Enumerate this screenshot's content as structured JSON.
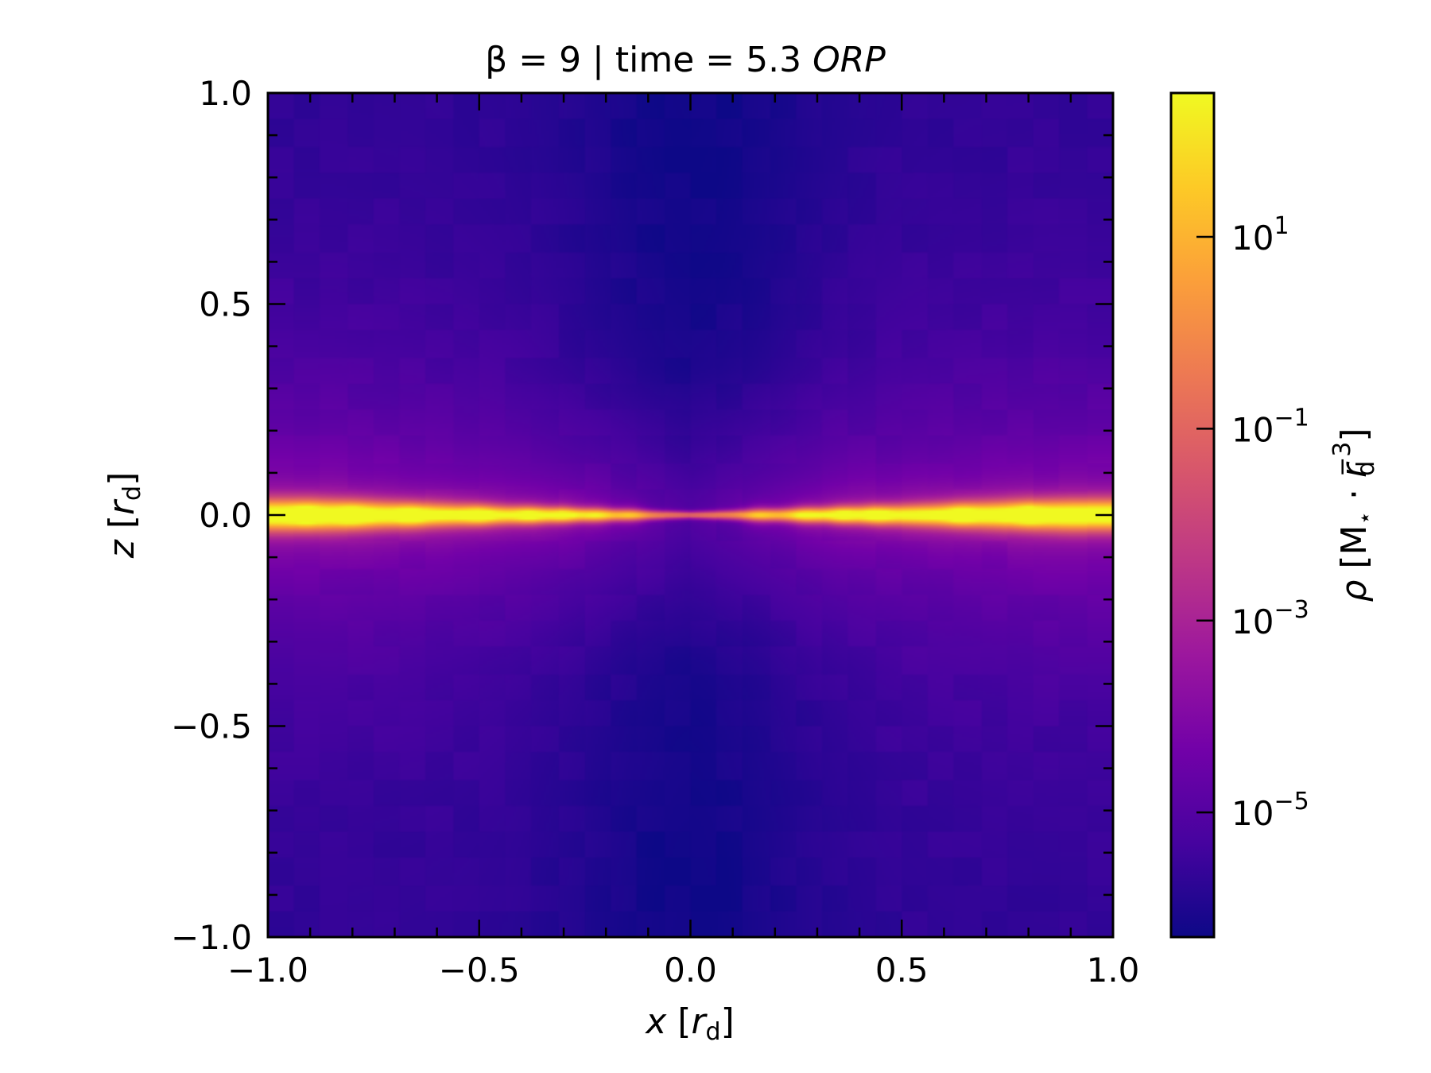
{
  "chart_data": {
    "type": "heatmap",
    "title": {
      "prefix": "β = 9 | time = 5.3 ",
      "suffix": "ORP"
    },
    "xlabel": {
      "var": "x",
      "open": " [",
      "sym": "r",
      "sub": "d",
      "close": "]"
    },
    "ylabel": {
      "var": "z",
      "open": " [",
      "sym": "r",
      "sub": "d",
      "close": "]"
    },
    "xlim": [
      -1.0,
      1.0
    ],
    "ylim": [
      -1.0,
      1.0
    ],
    "x_ticks": [
      {
        "value": -1.0,
        "label": "−1.0"
      },
      {
        "value": -0.5,
        "label": "−0.5"
      },
      {
        "value": 0.0,
        "label": "0.0"
      },
      {
        "value": 0.5,
        "label": "0.5"
      },
      {
        "value": 1.0,
        "label": "1.0"
      }
    ],
    "y_ticks": [
      {
        "value": -1.0,
        "label": "−1.0"
      },
      {
        "value": -0.5,
        "label": "−0.5"
      },
      {
        "value": 0.0,
        "label": "0.0"
      },
      {
        "value": 0.5,
        "label": "0.5"
      },
      {
        "value": 1.0,
        "label": "1.0"
      }
    ],
    "minor_tick_step": 0.1,
    "colormap": "plasma",
    "colormap_colors": [
      "#0d0887",
      "#46039f",
      "#7201a8",
      "#9c179e",
      "#bd3786",
      "#d8576b",
      "#ed7953",
      "#fb9f3a",
      "#fdca26",
      "#f0f921"
    ],
    "colorbar": {
      "scale": "log",
      "range_exponent": [
        -6.3,
        2.5
      ],
      "ticks": [
        {
          "exponent": 1,
          "base": "10",
          "exp_label": "1"
        },
        {
          "exponent": -1,
          "base": "10",
          "exp_label": "−1"
        },
        {
          "exponent": -3,
          "base": "10",
          "exp_label": "−3"
        },
        {
          "exponent": -5,
          "base": "10",
          "exp_label": "−5"
        }
      ],
      "label": {
        "var": "ρ",
        "open": " [M",
        "star": "⋆",
        "dot": " · ",
        "sym": "r",
        "sub": "d",
        "sup": "−3",
        "close": "]"
      }
    },
    "field": {
      "description": "log10 density in the x–z plane: dense thin midplane disk with bright clumps, rarefied bipolar regions near |x| small",
      "midplane_log_rho": 1.0,
      "polar_log_rho_min": -6.0,
      "clumps_x": [
        -0.91,
        -0.8,
        -0.66,
        -0.5,
        -0.38,
        -0.3,
        -0.22,
        -0.14,
        0.16,
        0.27,
        0.36,
        0.44,
        0.64,
        0.8
      ]
    }
  }
}
